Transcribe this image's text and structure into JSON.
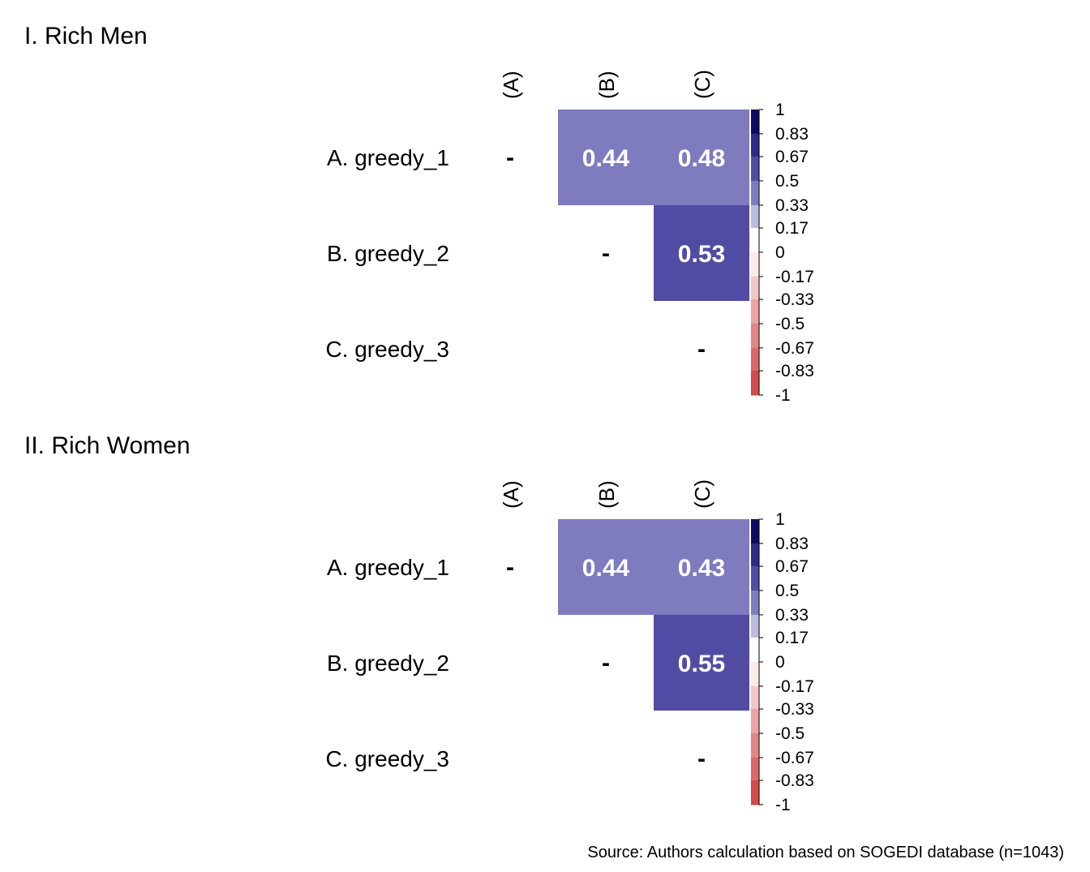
{
  "chart_data": [
    {
      "type": "heatmap",
      "title": "I. Rich Men",
      "rows": [
        "A. greedy_1",
        "B. greedy_2",
        "C. greedy_3"
      ],
      "columns": [
        "(A)",
        "(B)",
        "(C)"
      ],
      "diagonal_symbol": "-",
      "cells": [
        {
          "row": 0,
          "col": 1,
          "value": 0.44
        },
        {
          "row": 0,
          "col": 2,
          "value": 0.48
        },
        {
          "row": 1,
          "col": 2,
          "value": 0.53
        }
      ],
      "legend_ticks": [
        "1",
        "0.83",
        "0.67",
        "0.5",
        "0.33",
        "0.17",
        "0",
        "-0.17",
        "-0.33",
        "-0.5",
        "-0.67",
        "-0.83",
        "-1"
      ],
      "color_range": [
        -1,
        1
      ]
    },
    {
      "type": "heatmap",
      "title": "II. Rich Women",
      "rows": [
        "A. greedy_1",
        "B. greedy_2",
        "C. greedy_3"
      ],
      "columns": [
        "(A)",
        "(B)",
        "(C)"
      ],
      "diagonal_symbol": "-",
      "cells": [
        {
          "row": 0,
          "col": 1,
          "value": 0.44
        },
        {
          "row": 0,
          "col": 2,
          "value": 0.43
        },
        {
          "row": 1,
          "col": 2,
          "value": 0.55
        }
      ],
      "legend_ticks": [
        "1",
        "0.83",
        "0.67",
        "0.5",
        "0.33",
        "0.17",
        "0",
        "-0.17",
        "-0.33",
        "-0.5",
        "-0.67",
        "-0.83",
        "-1"
      ],
      "color_range": [
        -1,
        1
      ]
    }
  ],
  "source": "Source: Authors calculation based on SOGEDI database (n=1043)",
  "colors": {
    "band_0.17_0.33": "#bcbce0",
    "band_0.33_0.5": "#7f7bbf",
    "band_0.5_0.67": "#514ca3",
    "band_0.67_0.83": "#2e2a88",
    "band_0.83_1": "#0d0b62",
    "band_-0.17_0": "#fbe9e9",
    "band_-0.33_-0.17": "#f3c6c6",
    "band_-0.5_-0.33": "#eba3a3",
    "band_-0.67_-0.5": "#e28585",
    "band_-0.83_-0.67": "#da6868",
    "band_-1_-0.83": "#d24a4a",
    "band_0_0.17": "#ffffff"
  }
}
